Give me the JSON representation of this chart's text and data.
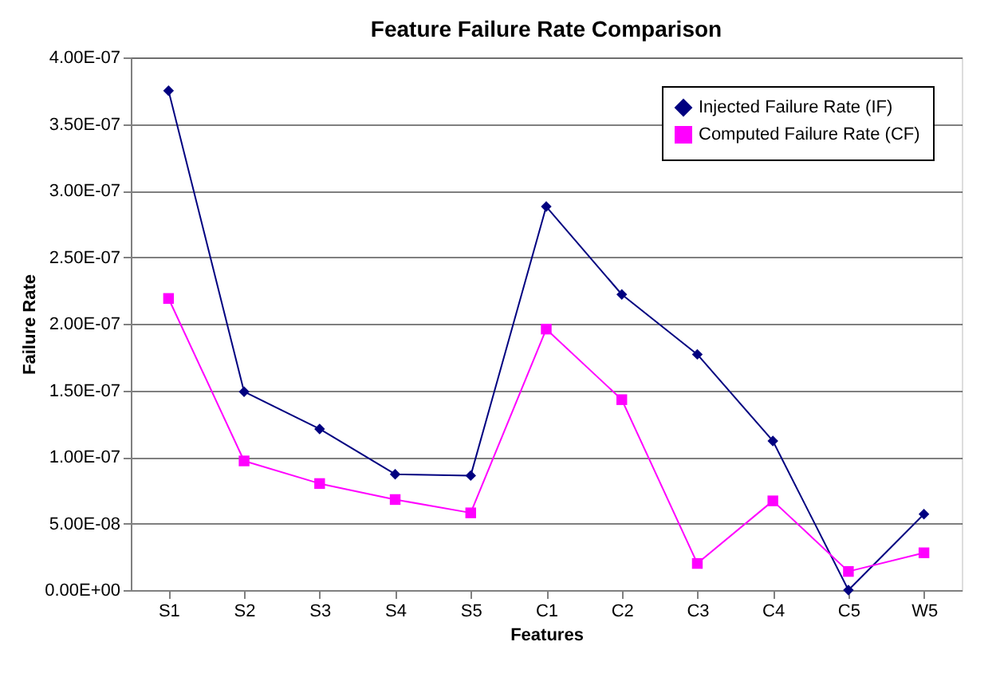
{
  "chart_data": {
    "type": "line",
    "title": "Feature Failure Rate Comparison",
    "xlabel": "Features",
    "ylabel": "Failure Rate",
    "categories": [
      "S1",
      "S2",
      "S3",
      "S4",
      "S5",
      "C1",
      "C2",
      "C3",
      "C4",
      "C5",
      "W5"
    ],
    "series": [
      {
        "name": "Injected Failure Rate (IF)",
        "color": "#000080",
        "marker": "diamond",
        "values": [
          3.75e-07,
          1.49e-07,
          1.21e-07,
          8.7e-08,
          8.6e-08,
          2.88e-07,
          2.22e-07,
          1.77e-07,
          1.12e-07,
          0.0,
          5.7e-08
        ]
      },
      {
        "name": "Computed Failure Rate (CF)",
        "color": "#ff00ff",
        "marker": "square",
        "values": [
          2.19e-07,
          9.7e-08,
          8e-08,
          6.8e-08,
          5.8e-08,
          1.96e-07,
          1.43e-07,
          2e-08,
          6.7e-08,
          1.4e-08,
          2.8e-08
        ]
      }
    ],
    "ylim": [
      0,
      4e-07
    ],
    "yticks": [
      {
        "value": 0,
        "label": "0.00E+00"
      },
      {
        "value": 5e-08,
        "label": "5.00E-08"
      },
      {
        "value": 1e-07,
        "label": "1.00E-07"
      },
      {
        "value": 1.5e-07,
        "label": "1.50E-07"
      },
      {
        "value": 2e-07,
        "label": "2.00E-07"
      },
      {
        "value": 2.5e-07,
        "label": "2.50E-07"
      },
      {
        "value": 3e-07,
        "label": "3.00E-07"
      },
      {
        "value": 3.5e-07,
        "label": "3.50E-07"
      },
      {
        "value": 4e-07,
        "label": "4.00E-07"
      }
    ],
    "grid": "y",
    "legend": "top right",
    "line_style": "solid"
  }
}
